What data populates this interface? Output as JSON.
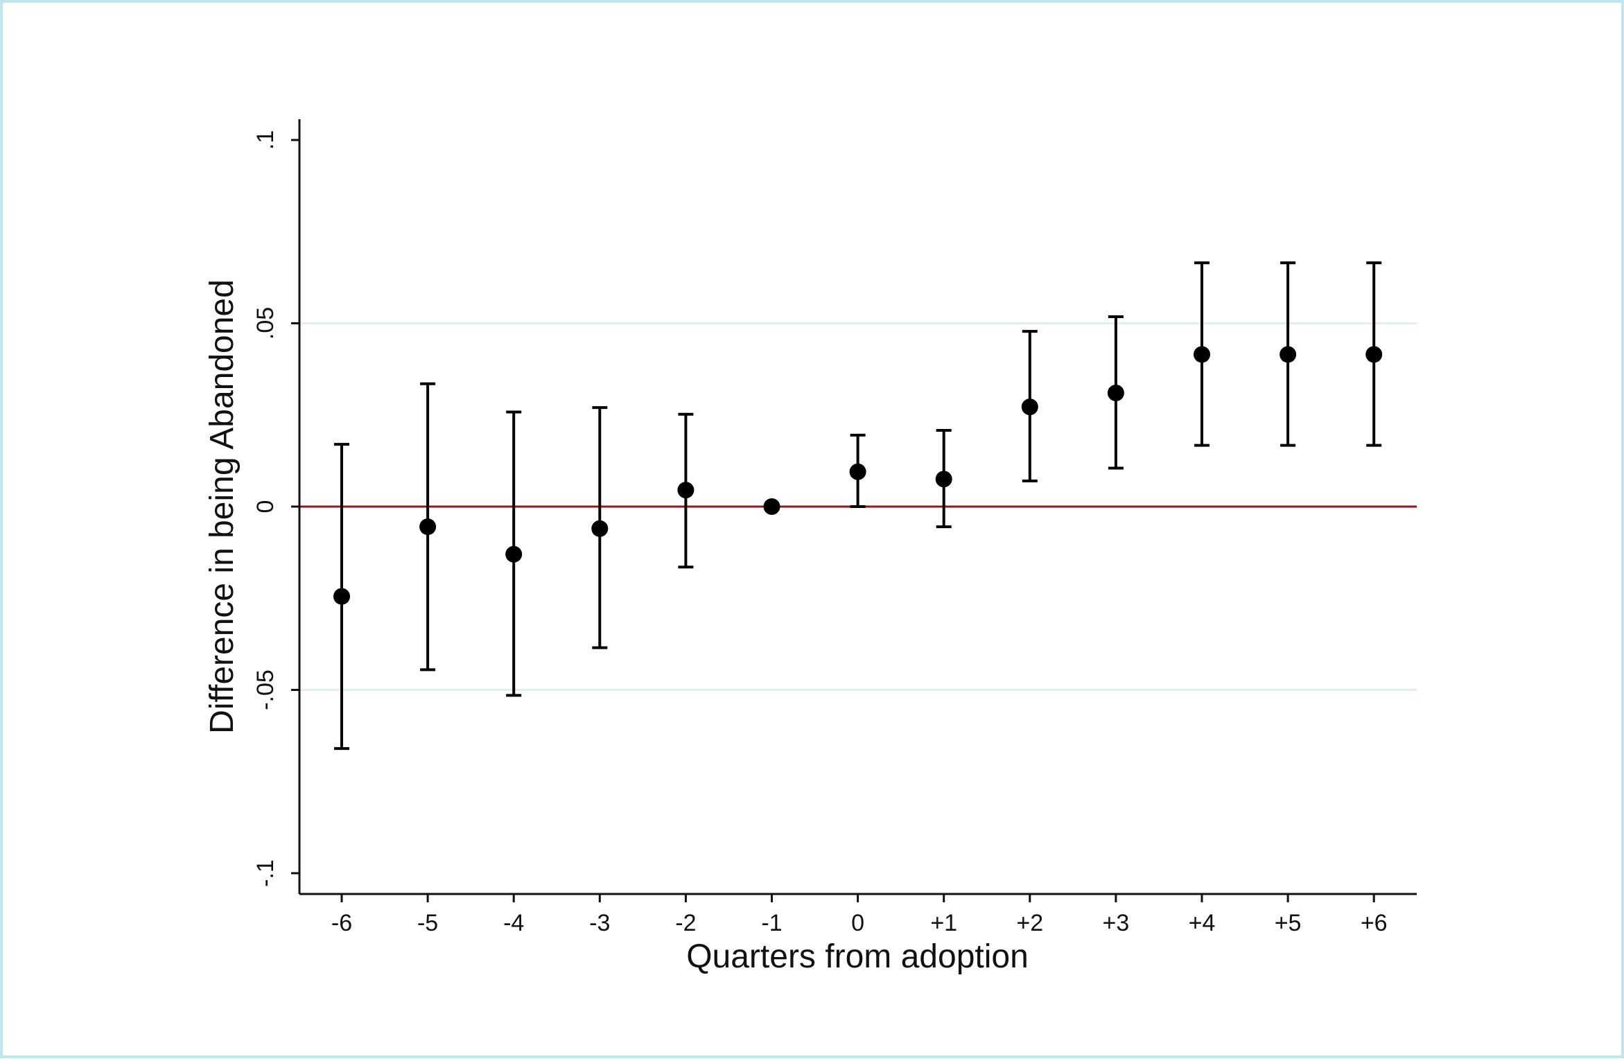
{
  "chart_data": {
    "type": "scatter",
    "title": "",
    "xlabel": "Quarters from adoption",
    "ylabel": "Difference in being Abandoned",
    "categories": [
      "-6",
      "-5",
      "-4",
      "-3",
      "-2",
      "-1",
      "0",
      "+1",
      "+2",
      "+3",
      "+4",
      "+5",
      "+6"
    ],
    "series": [
      {
        "estimate": [
          -0.0245,
          -0.0055,
          -0.013,
          -0.006,
          0.0045,
          0.0,
          0.0095,
          0.0075,
          0.0272,
          0.031,
          0.0415,
          0.0415,
          0.0415
        ],
        "ci_lower": [
          -0.066,
          -0.0445,
          -0.0515,
          -0.0385,
          -0.0165,
          0.0,
          0.0,
          -0.0055,
          0.007,
          0.0105,
          0.0167,
          0.0167,
          0.0167
        ],
        "ci_upper": [
          0.017,
          0.0335,
          0.0258,
          0.027,
          0.0252,
          0.0,
          0.0195,
          0.0208,
          0.0478,
          0.0518,
          0.0665,
          0.0665,
          0.0665
        ]
      }
    ],
    "yticks": [
      "-.1",
      "-.05",
      "0",
      ".05",
      ".1"
    ],
    "ytick_values": [
      -0.1,
      -0.05,
      0,
      0.05,
      0.1
    ],
    "ylim": [
      -0.106,
      0.106
    ],
    "grid": "horizontal",
    "reference_line": {
      "y": 0,
      "color": "#8b1a1a"
    },
    "colors": {
      "marker": "#000000",
      "gridline": "#e3eef0",
      "frame": "#bfe6ee"
    }
  }
}
